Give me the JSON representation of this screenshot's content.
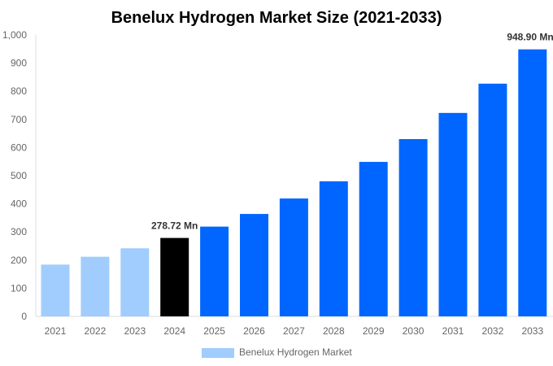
{
  "chart_data": {
    "type": "bar",
    "title": "Benelux Hydrogen Market Size (2021-2033)",
    "xlabel": "",
    "ylabel": "",
    "ylim": [
      0,
      1000
    ],
    "yticks": [
      "0",
      "100",
      "200",
      "300",
      "400",
      "500",
      "600",
      "700",
      "800",
      "900",
      "1,000"
    ],
    "ytick_values": [
      0,
      100,
      200,
      300,
      400,
      500,
      600,
      700,
      800,
      900,
      1000
    ],
    "categories": [
      "2021",
      "2022",
      "2023",
      "2024",
      "2025",
      "2026",
      "2027",
      "2028",
      "2029",
      "2030",
      "2031",
      "2032",
      "2033"
    ],
    "series": [
      {
        "name": "Benelux Hydrogen Market",
        "values": [
          184,
          212,
          242,
          278.72,
          319,
          364,
          419,
          480,
          549,
          630,
          723,
          827,
          948.9
        ]
      }
    ],
    "bar_colors": [
      "#a0cdfd",
      "#a0cdfd",
      "#a0cdfd",
      "#000000",
      "#0066ff",
      "#0066ff",
      "#0066ff",
      "#0066ff",
      "#0066ff",
      "#0066ff",
      "#0066ff",
      "#0066ff",
      "#0066ff"
    ],
    "data_labels": [
      {
        "category": "2024",
        "text": "278.72 Mn"
      },
      {
        "category": "2033",
        "text": "948.90 Mn"
      }
    ],
    "legend": {
      "position": "bottom",
      "label": "Benelux Hydrogen Market",
      "color": "#a0cdfd"
    },
    "grid": false
  }
}
